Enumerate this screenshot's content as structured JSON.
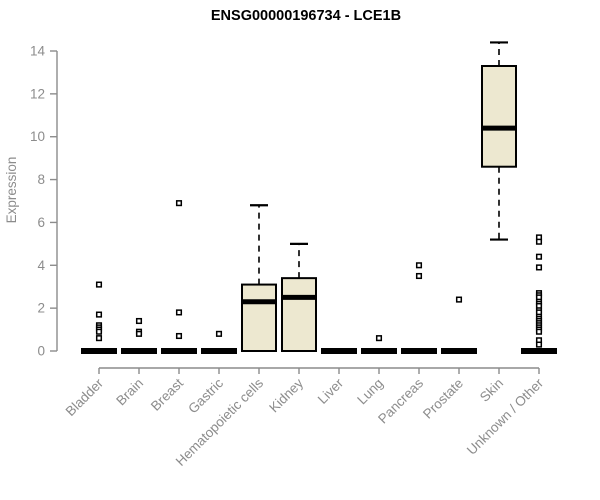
{
  "chart_data": {
    "type": "boxplot",
    "title": "ENSG00000196734 - LCE1B",
    "ylabel": "Expression",
    "xlabel": "",
    "ylim": [
      0,
      14
    ],
    "yticks": [
      0,
      2,
      4,
      6,
      8,
      10,
      12,
      14
    ],
    "grid": false,
    "legend": "none",
    "colors": {
      "box_fill": "#EDE8D0",
      "box_stroke": "#000000",
      "median": "#000000",
      "outlier": "#000000",
      "axis": "#8c8c8c",
      "title": "#000000",
      "background": "#ffffff"
    },
    "categories": [
      "Bladder",
      "Brain",
      "Breast",
      "Gastric",
      "Hematopoietic cells",
      "Kidney",
      "Liver",
      "Lung",
      "Pancreas",
      "Prostate",
      "Skin",
      "Unknown / Other"
    ],
    "series": [
      {
        "name": "Bladder",
        "min": 0,
        "q1": 0,
        "median": 0,
        "q3": 0,
        "max": 0,
        "outliers": [
          3.1,
          1.7,
          1.2,
          1.1,
          1.0,
          0.9,
          0.6
        ]
      },
      {
        "name": "Brain",
        "min": 0,
        "q1": 0,
        "median": 0,
        "q3": 0,
        "max": 0,
        "outliers": [
          1.4,
          0.9,
          0.8
        ]
      },
      {
        "name": "Breast",
        "min": 0,
        "q1": 0,
        "median": 0,
        "q3": 0,
        "max": 0,
        "outliers": [
          6.9,
          1.8,
          0.7
        ]
      },
      {
        "name": "Gastric",
        "min": 0,
        "q1": 0,
        "median": 0,
        "q3": 0,
        "max": 0,
        "outliers": [
          0.8
        ]
      },
      {
        "name": "Hematopoietic cells",
        "min": 0,
        "q1": 0,
        "median": 2.3,
        "q3": 3.1,
        "max": 6.8,
        "outliers": []
      },
      {
        "name": "Kidney",
        "min": 0,
        "q1": 0,
        "median": 2.5,
        "q3": 3.4,
        "max": 5.0,
        "outliers": []
      },
      {
        "name": "Liver",
        "min": 0,
        "q1": 0,
        "median": 0,
        "q3": 0,
        "max": 0,
        "outliers": []
      },
      {
        "name": "Lung",
        "min": 0,
        "q1": 0,
        "median": 0,
        "q3": 0,
        "max": 0,
        "outliers": [
          0.6
        ]
      },
      {
        "name": "Pancreas",
        "min": 0,
        "q1": 0,
        "median": 0,
        "q3": 0,
        "max": 0,
        "outliers": [
          4.0,
          3.5
        ]
      },
      {
        "name": "Prostate",
        "min": 0,
        "q1": 0,
        "median": 0,
        "q3": 0,
        "max": 0,
        "outliers": [
          2.4
        ]
      },
      {
        "name": "Skin",
        "min": 5.2,
        "q1": 8.6,
        "median": 10.4,
        "q3": 13.3,
        "max": 14.4,
        "outliers": []
      },
      {
        "name": "Unknown / Other",
        "min": 0,
        "q1": 0,
        "median": 0,
        "q3": 0,
        "max": 0,
        "outliers": [
          5.3,
          5.1,
          4.4,
          3.9,
          2.7,
          2.6,
          2.5,
          2.3,
          2.2,
          2.1,
          1.9,
          1.8,
          1.6,
          1.5,
          1.4,
          1.3,
          1.2,
          1.1,
          1.0,
          0.9,
          0.5,
          0.3
        ]
      }
    ]
  }
}
